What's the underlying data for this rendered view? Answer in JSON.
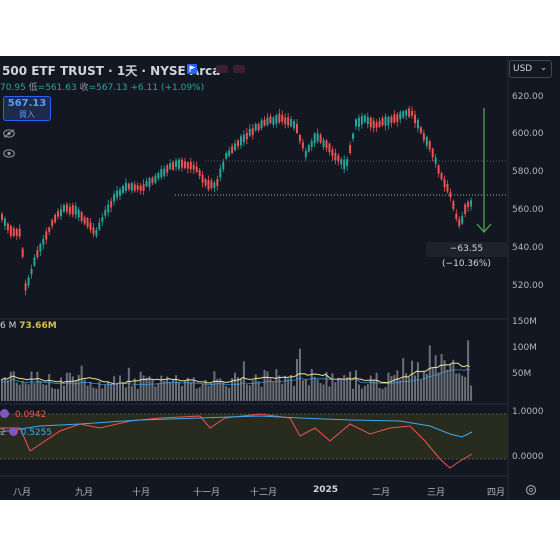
{
  "header": {
    "title": "500 ETF TRUST · 1天 · NYSE Arca",
    "ohlc_prefix": "70.95",
    "low_label": "低",
    "low_value": "=561.63",
    "close_label": "收",
    "close_value": "=567.13",
    "change": "+6.11 (+1.09%)"
  },
  "price_badge": {
    "price": "567.13",
    "action": "買入"
  },
  "currency": "USD",
  "price_axis": [
    "620.00",
    "600.00",
    "580.00",
    "560.00",
    "540.00",
    "520.00"
  ],
  "volume_axis": [
    "150M",
    "100M",
    "50M"
  ],
  "indicator_axis": [
    "1.0000",
    "0.0000"
  ],
  "time_axis": [
    "八月",
    "九月",
    "十月",
    "十一月",
    "十二月",
    "2025",
    "二月",
    "三月",
    "四月"
  ],
  "measure_label": "−63.55 (−10.36%)",
  "volume_label": {
    "prefix": "6 M",
    "value": "73.66M"
  },
  "indicator_rows": [
    {
      "prefix": "",
      "value": "0.0942"
    },
    {
      "prefix": "2",
      "value": "0.5255"
    }
  ],
  "colors": {
    "background": "#131722",
    "up": "#26a69a",
    "down": "#ef5350",
    "accent": "#2962ff",
    "volume_ma": "#e8e39a",
    "measure_arrow": "#4caf50"
  },
  "icons": [
    "flag-icon",
    "eye-icon",
    "eye-icon",
    "chevron-down-icon",
    "gear-icon",
    "indicator-icon"
  ]
}
